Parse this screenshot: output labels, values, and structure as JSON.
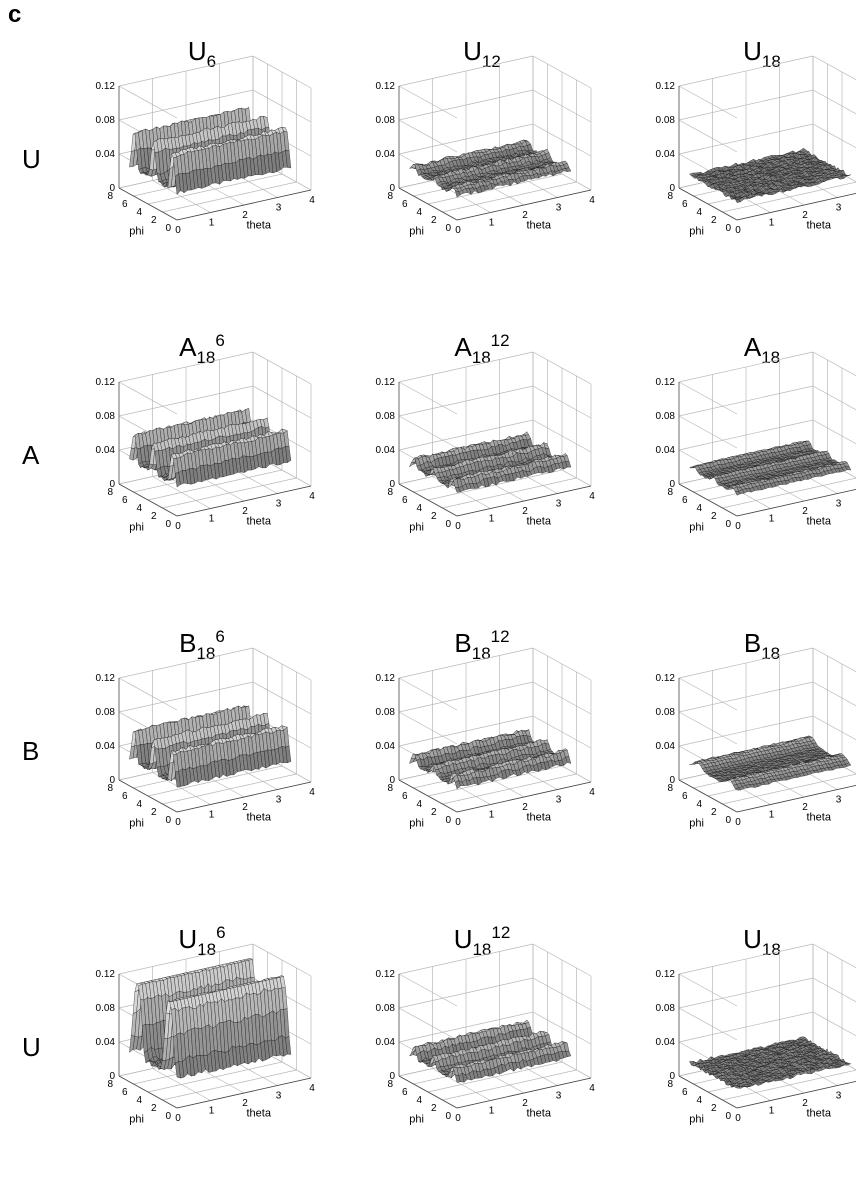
{
  "figure_label": "c",
  "row_labels": [
    "U",
    "A",
    "B",
    "U"
  ],
  "chart_data": [
    {
      "type": "surface",
      "title_base": "U",
      "title_sub": "6",
      "title_sup": "",
      "z_tick_labels": [
        "0",
        "0.04",
        "0.08",
        "0.12"
      ],
      "x_tick_labels": [
        "0",
        "1",
        "2",
        "3",
        "4"
      ],
      "y_tick_labels": [
        "0",
        "2",
        "4",
        "6",
        "8"
      ],
      "xlabel": "theta",
      "ylabel": "phi",
      "zlim": [
        0,
        0.12
      ],
      "xlim": [
        0,
        4
      ],
      "ylim": [
        0,
        8
      ],
      "ridge_count": 5,
      "ridge_amplitude": 0.045,
      "base_level": 0.032,
      "rough": 0.002,
      "grid": true
    },
    {
      "type": "surface",
      "title_base": "U",
      "title_sub": "12",
      "title_sup": "",
      "z_tick_labels": [
        "0",
        "0.04",
        "0.08",
        "0.12"
      ],
      "x_tick_labels": [
        "0",
        "1",
        "2",
        "3",
        "4"
      ],
      "y_tick_labels": [
        "0",
        "2",
        "4",
        "6",
        "8"
      ],
      "xlabel": "theta",
      "ylabel": "phi",
      "zlim": [
        0,
        0.12
      ],
      "xlim": [
        0,
        4
      ],
      "ylim": [
        0,
        8
      ],
      "ridge_count": 5,
      "ridge_amplitude": 0.008,
      "base_level": 0.028,
      "rough": 0.002,
      "grid": true
    },
    {
      "type": "surface",
      "title_base": "U",
      "title_sub": "18",
      "title_sup": "",
      "z_tick_labels": [
        "0",
        "0.04",
        "0.08",
        "0.12"
      ],
      "x_tick_labels": [
        "0",
        "1",
        "2",
        "3",
        "4"
      ],
      "y_tick_labels": [
        "0",
        "2",
        "4",
        "6",
        "8"
      ],
      "xlabel": "theta",
      "ylabel": "phi",
      "zlim": [
        0,
        0.12
      ],
      "xlim": [
        0,
        4
      ],
      "ylim": [
        0,
        8
      ],
      "ridge_count": 0,
      "ridge_amplitude": 0.0,
      "base_level": 0.022,
      "rough": 0.002,
      "grid": true
    },
    {
      "type": "surface",
      "title_base": "A",
      "title_sub": "18",
      "title_sup": "6",
      "z_tick_labels": [
        "0",
        "0.04",
        "0.08",
        "0.12"
      ],
      "x_tick_labels": [
        "0",
        "1",
        "2",
        "3",
        "4"
      ],
      "y_tick_labels": [
        "0",
        "2",
        "4",
        "6",
        "8"
      ],
      "xlabel": "theta",
      "ylabel": "phi",
      "zlim": [
        0,
        0.12
      ],
      "xlim": [
        0,
        4
      ],
      "ylim": [
        0,
        8
      ],
      "ridge_count": 5,
      "ridge_amplitude": 0.035,
      "base_level": 0.035,
      "rough": 0.002,
      "grid": true
    },
    {
      "type": "surface",
      "title_base": "A",
      "title_sub": "18",
      "title_sup": "12",
      "z_tick_labels": [
        "0",
        "0.04",
        "0.08",
        "0.12"
      ],
      "x_tick_labels": [
        "0",
        "1",
        "2",
        "3",
        "4"
      ],
      "y_tick_labels": [
        "0",
        "2",
        "4",
        "6",
        "8"
      ],
      "xlabel": "theta",
      "ylabel": "phi",
      "zlim": [
        0,
        0.12
      ],
      "xlim": [
        0,
        4
      ],
      "ylim": [
        0,
        8
      ],
      "ridge_count": 5,
      "ridge_amplitude": 0.012,
      "base_level": 0.028,
      "rough": 0.002,
      "grid": true
    },
    {
      "type": "surface",
      "title_base": "A",
      "title_sub": "18",
      "title_sup": "",
      "z_tick_labels": [
        "0",
        "0.04",
        "0.08",
        "0.12"
      ],
      "x_tick_labels": [
        "0",
        "1",
        "2",
        "3",
        "4"
      ],
      "y_tick_labels": [
        "0",
        "2",
        "4",
        "6",
        "8"
      ],
      "xlabel": "theta",
      "ylabel": "phi",
      "zlim": [
        0,
        0.12
      ],
      "xlim": [
        0,
        4
      ],
      "ylim": [
        0,
        8
      ],
      "ridge_count": 5,
      "ridge_amplitude": 0.006,
      "base_level": 0.025,
      "rough": 0.001,
      "grid": true
    },
    {
      "type": "surface",
      "title_base": "B",
      "title_sub": "18",
      "title_sup": "6",
      "z_tick_labels": [
        "0",
        "0.04",
        "0.08",
        "0.12"
      ],
      "x_tick_labels": [
        "0",
        "1",
        "2",
        "3",
        "4"
      ],
      "y_tick_labels": [
        "0",
        "2",
        "4",
        "6",
        "8"
      ],
      "xlabel": "theta",
      "ylabel": "phi",
      "zlim": [
        0,
        0.12
      ],
      "xlim": [
        0,
        4
      ],
      "ylim": [
        0,
        8
      ],
      "ridge_count": 5,
      "ridge_amplitude": 0.04,
      "base_level": 0.03,
      "rough": 0.002,
      "grid": true
    },
    {
      "type": "surface",
      "title_base": "B",
      "title_sub": "18",
      "title_sup": "12",
      "z_tick_labels": [
        "0",
        "0.04",
        "0.08",
        "0.12"
      ],
      "x_tick_labels": [
        "0",
        "1",
        "2",
        "3",
        "4"
      ],
      "y_tick_labels": [
        "0",
        "2",
        "4",
        "6",
        "8"
      ],
      "xlabel": "theta",
      "ylabel": "phi",
      "zlim": [
        0,
        0.12
      ],
      "xlim": [
        0,
        4
      ],
      "ylim": [
        0,
        8
      ],
      "ridge_count": 5,
      "ridge_amplitude": 0.012,
      "base_level": 0.028,
      "rough": 0.002,
      "grid": true
    },
    {
      "type": "surface",
      "title_base": "B",
      "title_sub": "18",
      "title_sup": "",
      "z_tick_labels": [
        "0",
        "0.04",
        "0.08",
        "0.12"
      ],
      "x_tick_labels": [
        "0",
        "1",
        "2",
        "3",
        "4"
      ],
      "y_tick_labels": [
        "0",
        "2",
        "4",
        "6",
        "8"
      ],
      "xlabel": "theta",
      "ylabel": "phi",
      "zlim": [
        0,
        0.12
      ],
      "xlim": [
        0,
        4
      ],
      "ylim": [
        0,
        8
      ],
      "ridge_count": 3,
      "ridge_amplitude": 0.008,
      "base_level": 0.025,
      "rough": 0.001,
      "grid": true
    },
    {
      "type": "surface",
      "title_base": "U",
      "title_sub": "18",
      "title_sup": "6",
      "z_tick_labels": [
        "0",
        "0.04",
        "0.08",
        "0.12"
      ],
      "x_tick_labels": [
        "0",
        "1",
        "2",
        "3",
        "4"
      ],
      "y_tick_labels": [
        "0",
        "2",
        "4",
        "6",
        "8"
      ],
      "xlabel": "theta",
      "ylabel": "phi",
      "zlim": [
        0,
        0.12
      ],
      "xlim": [
        0,
        4
      ],
      "ylim": [
        0,
        8
      ],
      "ridge_count": 3,
      "ridge_amplitude": 0.09,
      "base_level": 0.035,
      "rough": 0.003,
      "grid": true
    },
    {
      "type": "surface",
      "title_base": "U",
      "title_sub": "18",
      "title_sup": "12",
      "z_tick_labels": [
        "0",
        "0.04",
        "0.08",
        "0.12"
      ],
      "x_tick_labels": [
        "0",
        "1",
        "2",
        "3",
        "4"
      ],
      "y_tick_labels": [
        "0",
        "2",
        "4",
        "6",
        "8"
      ],
      "xlabel": "theta",
      "ylabel": "phi",
      "zlim": [
        0,
        0.12
      ],
      "xlim": [
        0,
        4
      ],
      "ylim": [
        0,
        8
      ],
      "ridge_count": 5,
      "ridge_amplitude": 0.015,
      "base_level": 0.03,
      "rough": 0.002,
      "grid": true
    },
    {
      "type": "surface",
      "title_base": "U",
      "title_sub": "18",
      "title_sup": "",
      "z_tick_labels": [
        "0",
        "0.04",
        "0.08",
        "0.12"
      ],
      "x_tick_labels": [
        "0",
        "1",
        "2",
        "3",
        "4"
      ],
      "y_tick_labels": [
        "0",
        "2",
        "4",
        "6",
        "8"
      ],
      "xlabel": "theta",
      "ylabel": "phi",
      "zlim": [
        0,
        0.12
      ],
      "xlim": [
        0,
        4
      ],
      "ylim": [
        0,
        8
      ],
      "ridge_count": 0,
      "ridge_amplitude": 0.0,
      "base_level": 0.022,
      "rough": 0.002,
      "grid": true
    }
  ]
}
